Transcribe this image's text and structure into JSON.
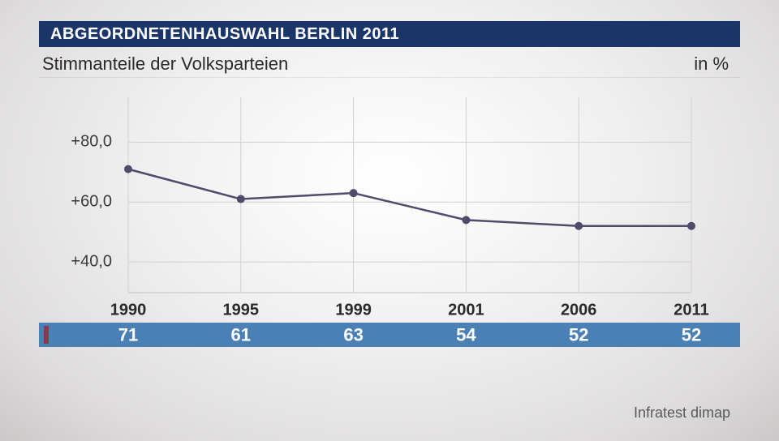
{
  "header": {
    "title": "ABGEORDNETENHAUSWAHL BERLIN 2011",
    "bar_bg": "#1b3568",
    "bar_text_color": "#ffffff"
  },
  "subtitle": {
    "text": "Stimmanteile der Volksparteien",
    "unit": "in %",
    "text_color": "#2a2a2a"
  },
  "chart": {
    "type": "line",
    "years": [
      "1990",
      "1995",
      "1999",
      "2001",
      "2006",
      "2011"
    ],
    "values": [
      71,
      61,
      63,
      54,
      52,
      52
    ],
    "yticks": [
      40,
      60,
      80
    ],
    "ytick_labels": [
      "+40,0",
      "+60,0",
      "+80,0"
    ],
    "ylim": [
      30,
      95
    ],
    "line_color": "#514a6a",
    "line_width": 2.5,
    "marker_radius": 5,
    "grid_color": "#d2d0cf",
    "axis_line_color": "#c2c0bf",
    "year_row_bg": "#ffffff",
    "value_row_bg": "#4a80b3",
    "value_row_accent": "#8a3a4a",
    "year_label_color": "#2a2a2a",
    "value_label_color": "#ffffff",
    "year_fontsize": 20,
    "value_fontsize": 22,
    "ytick_fontsize": 20
  },
  "source": "Infratest dimap",
  "colors": {
    "page_bg_inner": "#ffffff",
    "page_bg_outer": "#cbc9c8"
  }
}
